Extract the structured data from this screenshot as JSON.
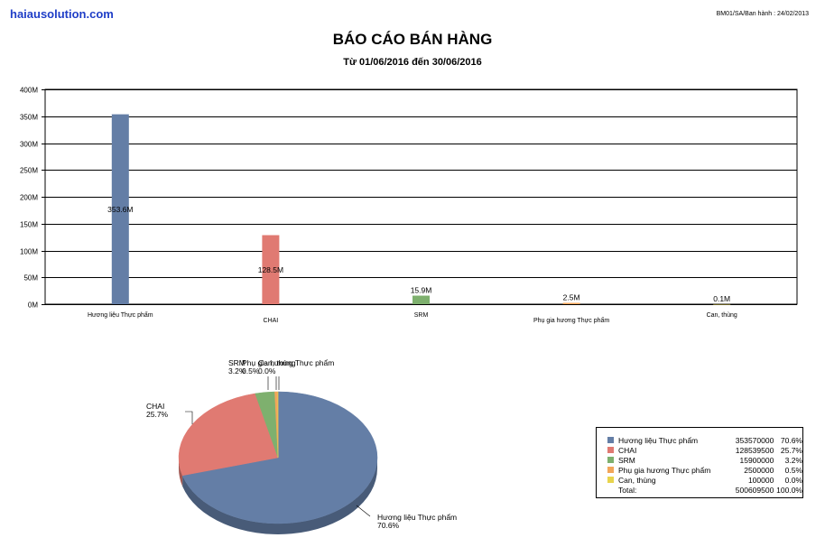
{
  "header": {
    "site": "haiausolution.com",
    "doc_ref": "BM01/SA/Ban hành : 24/02/2013",
    "title": "BÁO CÁO BÁN HÀNG",
    "subtitle": "Từ 01/06/2016 đến 30/06/2016"
  },
  "chart_data": [
    {
      "type": "bar",
      "title": "",
      "categories": [
        "Hương liệu Thực phẩm",
        "CHAI",
        "SRM",
        "Phụ gia hương Thực phẩm",
        "Can, thùng"
      ],
      "values": [
        353570000,
        128539500,
        15900000,
        2500000,
        100000
      ],
      "data_labels": [
        "353.6M",
        "128.5M",
        "15.9M",
        "2.5M",
        "0.1M"
      ],
      "colors": [
        "#647ea6",
        "#e07a72",
        "#7eb06e",
        "#f2a65a",
        "#e8d44d"
      ],
      "ylim": [
        0,
        400000000
      ],
      "yticks": [
        0,
        50000000,
        100000000,
        150000000,
        200000000,
        250000000,
        300000000,
        350000000,
        400000000
      ],
      "ytick_labels": [
        "0M",
        "50M",
        "100M",
        "150M",
        "200M",
        "250M",
        "300M",
        "350M",
        "400M"
      ],
      "grid": true,
      "xlabel": "",
      "ylabel": ""
    },
    {
      "type": "pie",
      "title": "",
      "labels": [
        "Hương liệu Thực phẩm",
        "CHAI",
        "SRM",
        "Phụ gia hương Thực phẩm",
        "Can, thùng"
      ],
      "values": [
        353570000,
        128539500,
        15900000,
        2500000,
        100000
      ],
      "percent_labels": [
        "70.6%",
        "25.7%",
        "3.2%",
        "0.5%",
        "0.0%"
      ],
      "colors": [
        "#647ea6",
        "#e07a72",
        "#7eb06e",
        "#f2a65a",
        "#e8d44d"
      ],
      "legend": "right"
    }
  ],
  "legend_table": {
    "rows": [
      {
        "name": "Hương liệu Thực phẩm",
        "value": "353570000",
        "pct": "70.6%"
      },
      {
        "name": "CHAI",
        "value": "128539500",
        "pct": "25.7%"
      },
      {
        "name": "SRM",
        "value": "15900000",
        "pct": "3.2%"
      },
      {
        "name": "Phụ gia hương Thực phẩm",
        "value": "2500000",
        "pct": "0.5%"
      },
      {
        "name": "Can, thùng",
        "value": "100000",
        "pct": "0.0%"
      }
    ],
    "total_label": "Total:",
    "total_value": "500609500",
    "total_pct": "100.0%"
  }
}
